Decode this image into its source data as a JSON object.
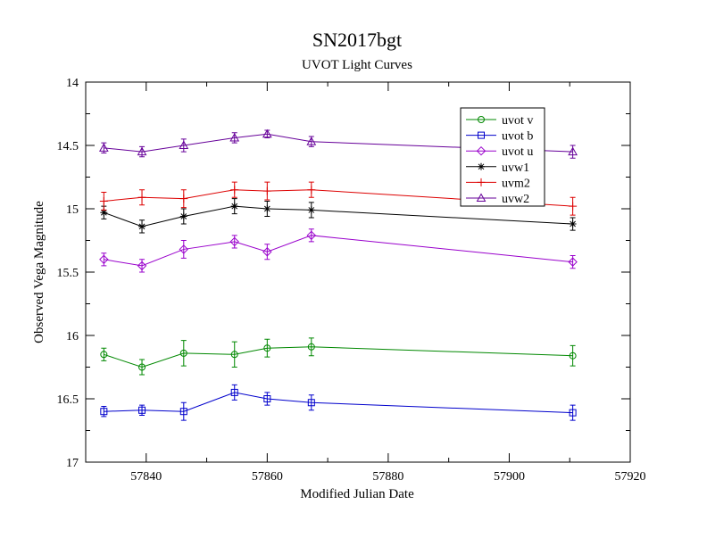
{
  "chart_data": {
    "type": "line",
    "title": "SN2017bgt",
    "subtitle": "UVOT Light Curves",
    "xlabel": "Modified Julian Date",
    "ylabel": "Observed Vega Magnitude",
    "xlim": [
      57830,
      57920
    ],
    "ylim": [
      14,
      17
    ],
    "y_inverted": true,
    "x_ticks": [
      57840,
      57860,
      57880,
      57900,
      57920
    ],
    "y_ticks": [
      14,
      14.5,
      15,
      15.5,
      16,
      16.5,
      17
    ],
    "y_tick_labels": [
      "14",
      "14.5",
      "15",
      "15.5",
      "16",
      "16.5",
      "17"
    ],
    "grid": false,
    "legend_position": "top-right",
    "x": [
      57833,
      57839.3,
      57846.2,
      57854.6,
      57860,
      57867.3,
      57910.5
    ],
    "series": [
      {
        "name": "uvot v",
        "color": "#008800",
        "marker": "circle",
        "values": [
          16.15,
          16.25,
          16.14,
          16.15,
          16.1,
          16.09,
          16.16
        ],
        "errors": [
          0.05,
          0.06,
          0.1,
          0.1,
          0.07,
          0.07,
          0.08
        ]
      },
      {
        "name": "uvot b",
        "color": "#0000cc",
        "marker": "square",
        "values": [
          16.6,
          16.59,
          16.6,
          16.45,
          16.5,
          16.53,
          16.61
        ],
        "errors": [
          0.04,
          0.04,
          0.07,
          0.06,
          0.05,
          0.06,
          0.06
        ]
      },
      {
        "name": "uvot u",
        "color": "#9900cc",
        "marker": "diamond",
        "values": [
          15.4,
          15.45,
          15.32,
          15.26,
          15.34,
          15.21,
          15.42
        ],
        "errors": [
          0.05,
          0.05,
          0.07,
          0.05,
          0.06,
          0.05,
          0.05
        ]
      },
      {
        "name": "uvw1",
        "color": "#000000",
        "marker": "star",
        "values": [
          15.03,
          15.14,
          15.06,
          14.98,
          15.0,
          15.01,
          15.12
        ],
        "errors": [
          0.05,
          0.05,
          0.06,
          0.06,
          0.06,
          0.06,
          0.05
        ]
      },
      {
        "name": "uvm2",
        "color": "#dd0000",
        "marker": "plus",
        "values": [
          14.94,
          14.91,
          14.92,
          14.85,
          14.86,
          14.85,
          14.98
        ],
        "errors": [
          0.07,
          0.06,
          0.07,
          0.06,
          0.07,
          0.06,
          0.07
        ]
      },
      {
        "name": "uvw2",
        "color": "#660099",
        "marker": "triangle",
        "values": [
          14.52,
          14.55,
          14.5,
          14.44,
          14.41,
          14.47,
          14.55
        ],
        "errors": [
          0.04,
          0.04,
          0.05,
          0.04,
          0.03,
          0.04,
          0.05
        ]
      }
    ]
  }
}
